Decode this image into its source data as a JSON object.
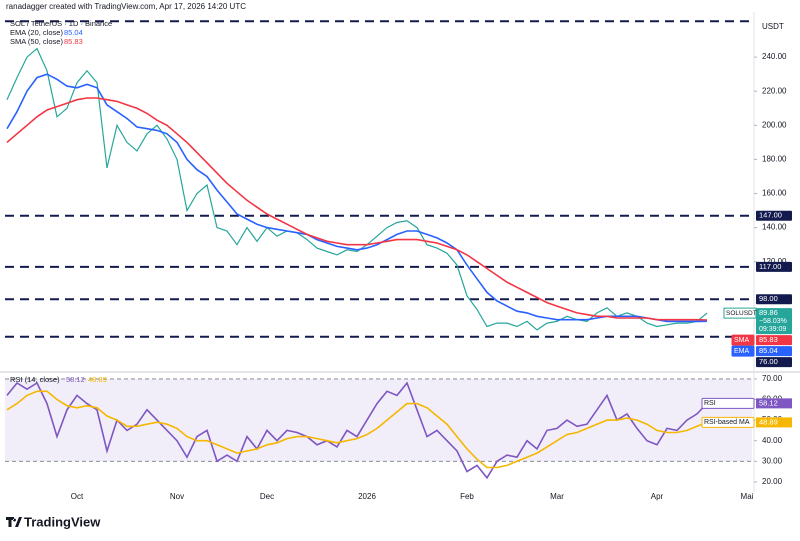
{
  "header": "ranadagger created with TradingView.com, Apr 17, 2026 14:20 UTC",
  "footer_logo": "TradingView",
  "chart_data": [
    {
      "type": "line",
      "title": "SOL / TetherUS · 1D · Binance",
      "axis_unit": "USDT",
      "categories": [
        null,
        null,
        null,
        null,
        null,
        null,
        null,
        "Oct",
        null,
        null,
        null,
        null,
        null,
        null,
        null,
        null,
        null,
        "Nov",
        null,
        null,
        null,
        null,
        null,
        null,
        null,
        null,
        "Dec",
        null,
        null,
        null,
        null,
        null,
        null,
        null,
        null,
        null,
        "2026",
        null,
        null,
        null,
        null,
        null,
        null,
        null,
        null,
        null,
        "Feb",
        null,
        null,
        null,
        null,
        null,
        null,
        null,
        null,
        "Mar",
        null,
        null,
        null,
        null,
        null,
        null,
        null,
        null,
        null,
        "Apr",
        null,
        null,
        null,
        null,
        null,
        null,
        null,
        null,
        "Mai"
      ],
      "series": [
        {
          "name": "SOLUSDT",
          "color": "#26a69a",
          "change_label": "−58.03%",
          "time_label": "09:39:09",
          "values": [
            215,
            228,
            240,
            245,
            232,
            205,
            210,
            225,
            232,
            225,
            175,
            200,
            190,
            185,
            195,
            200,
            192,
            180,
            150,
            160,
            165,
            140,
            138,
            130,
            140,
            132,
            140,
            135,
            138,
            137,
            133,
            128,
            126,
            124,
            127,
            126,
            130,
            135,
            140,
            143,
            144,
            140,
            130,
            128,
            125,
            118,
            100,
            92,
            82,
            84,
            84,
            82,
            85,
            80,
            84,
            85,
            88,
            86,
            85,
            90,
            93,
            88,
            90,
            88,
            84,
            82,
            83,
            84,
            84,
            85,
            89.86,
            null,
            null,
            null,
            null
          ]
        },
        {
          "name": "EMA (20, close)",
          "tag": "EMA",
          "color": "#2962ff",
          "values": [
            198,
            208,
            220,
            228,
            230,
            227,
            223,
            222,
            224,
            222,
            212,
            208,
            204,
            199,
            198,
            197,
            195,
            190,
            180,
            174,
            170,
            162,
            155,
            148,
            145,
            142,
            140,
            139,
            138,
            137,
            136,
            133,
            131,
            129,
            128,
            127,
            128,
            130,
            133,
            136,
            138,
            138,
            136,
            134,
            131,
            127,
            118,
            110,
            102,
            97,
            94,
            91,
            90,
            88,
            87,
            86,
            86,
            86,
            86,
            87,
            88,
            88,
            88,
            88,
            87,
            86,
            85,
            85,
            85,
            85,
            85.04,
            null,
            null,
            null,
            null
          ]
        },
        {
          "name": "SMA (50, close)",
          "tag": "SMA",
          "color": "#f23645",
          "values": [
            190,
            195,
            200,
            205,
            209,
            211,
            213,
            215,
            216,
            216,
            215,
            214,
            212,
            210,
            207,
            203,
            200,
            195,
            190,
            184,
            178,
            172,
            166,
            161,
            156,
            152,
            148,
            145,
            142,
            139,
            136,
            134,
            132,
            131,
            130,
            130,
            130,
            131,
            132,
            133,
            133,
            133,
            132,
            131,
            129,
            127,
            124,
            120,
            116,
            112,
            108,
            105,
            102,
            99,
            96,
            94,
            92,
            90,
            89,
            88,
            88,
            87,
            87,
            87,
            87,
            86,
            86,
            86,
            86,
            86,
            85.83,
            null,
            null,
            null,
            null
          ]
        }
      ],
      "levels": [
        {
          "value": 261
        },
        {
          "value": 147,
          "label": "147.00"
        },
        {
          "value": 117,
          "label": "117.00"
        },
        {
          "value": 98,
          "label": "98.00"
        },
        {
          "value": 76,
          "label": "76.00"
        }
      ],
      "ylim": [
        56.5,
        264.7
      ],
      "yticks": [
        {
          "value": 120,
          "label": "120.00"
        },
        {
          "value": 140,
          "label": "140.00"
        },
        {
          "value": 160,
          "label": "160.00"
        },
        {
          "value": 180,
          "label": "180.00"
        },
        {
          "value": 200,
          "label": "200.00"
        },
        {
          "value": 220,
          "label": "220.00"
        },
        {
          "value": 240,
          "label": "240.00"
        }
      ]
    },
    {
      "type": "line",
      "title": "RSI (14, close)",
      "series": [
        {
          "name": "RSI",
          "color": "#7e57c2",
          "values": [
            62,
            68,
            65,
            68,
            58,
            42,
            55,
            62,
            58,
            55,
            35,
            50,
            45,
            48,
            55,
            50,
            45,
            40,
            32,
            42,
            45,
            30,
            33,
            30,
            42,
            36,
            45,
            40,
            45,
            44,
            42,
            38,
            40,
            37,
            45,
            42,
            50,
            58,
            64,
            62,
            68,
            55,
            42,
            45,
            40,
            35,
            25,
            28,
            22,
            30,
            33,
            32,
            40,
            36,
            45,
            46,
            50,
            47,
            48,
            55,
            62,
            50,
            53,
            46,
            40,
            38,
            46,
            45,
            50,
            53,
            58.12,
            null,
            null,
            null,
            null
          ]
        },
        {
          "name": "RSI-based MA",
          "color": "#f5b700",
          "values": [
            55,
            58,
            62,
            64,
            64,
            60,
            57,
            56,
            57,
            56,
            52,
            50,
            47,
            47,
            48,
            49,
            48,
            46,
            42,
            40,
            40,
            38,
            36,
            34,
            35,
            36,
            38,
            39,
            41,
            42,
            42,
            41,
            40,
            39,
            40,
            41,
            43,
            46,
            50,
            54,
            58,
            58,
            56,
            52,
            48,
            42,
            36,
            31,
            27,
            27,
            28,
            30,
            32,
            34,
            37,
            40,
            43,
            44,
            46,
            48,
            50,
            50,
            51,
            50,
            48,
            45,
            44,
            44,
            45,
            47,
            48.89,
            null,
            null,
            null,
            null
          ]
        }
      ],
      "band": [
        30,
        70
      ],
      "ylim": [
        15.1,
        71.9
      ],
      "yticks": [
        {
          "value": 20,
          "label": "20.00"
        },
        {
          "value": 30,
          "label": "30.00"
        },
        {
          "value": 40,
          "label": "40.00"
        },
        {
          "value": 50,
          "label": "50.00"
        },
        {
          "value": 60,
          "label": "60.00"
        },
        {
          "value": 70,
          "label": "70.00"
        }
      ]
    }
  ]
}
